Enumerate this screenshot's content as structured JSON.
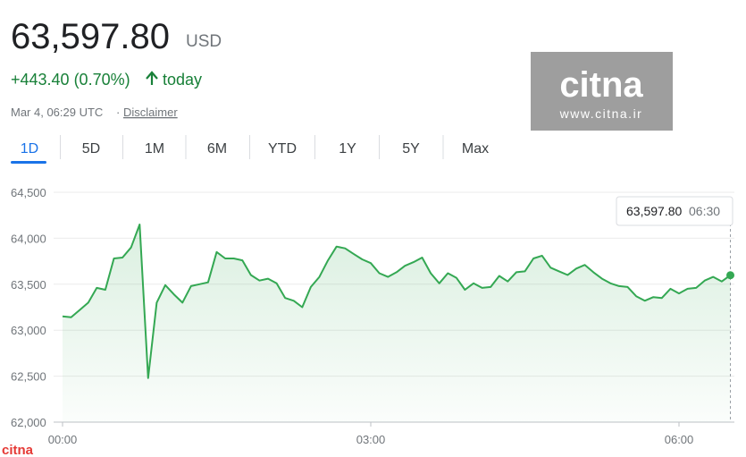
{
  "header": {
    "price": "63,597.80",
    "currency": "USD",
    "change": "+443.40 (0.70%)",
    "period": "today",
    "timestamp": "Mar 4, 06:29 UTC",
    "separator": "·",
    "disclaimer": "Disclaimer"
  },
  "tabs": [
    "1D",
    "5D",
    "1M",
    "6M",
    "YTD",
    "1Y",
    "5Y",
    "Max"
  ],
  "watermark": {
    "logo": "citna",
    "url": "www.citna.ir",
    "corner_logo": "citna"
  },
  "tooltip": {
    "value": "63,597.80",
    "time": "06:30"
  },
  "chart_data": {
    "type": "line",
    "color": "#34a853",
    "grid": true,
    "x": [
      0,
      5,
      10,
      15,
      20,
      25,
      30,
      35,
      40,
      45,
      50,
      55,
      60,
      65,
      70,
      75,
      80,
      85,
      90,
      95,
      100,
      105,
      110,
      115,
      120,
      125,
      130,
      135,
      140,
      145,
      150,
      155,
      160,
      165,
      170,
      175,
      180,
      185,
      190,
      195,
      200,
      205,
      210,
      215,
      220,
      225,
      230,
      235,
      240,
      245,
      250,
      255,
      260,
      265,
      270,
      275,
      280,
      285,
      290,
      295,
      300,
      305,
      310,
      315,
      320,
      325,
      330,
      335,
      340,
      345,
      350,
      355,
      360,
      365,
      370,
      375,
      380,
      385,
      390
    ],
    "values": [
      63150,
      63140,
      63220,
      63300,
      63460,
      63440,
      63780,
      63790,
      63900,
      64150,
      62480,
      63300,
      63490,
      63390,
      63300,
      63480,
      63500,
      63520,
      63850,
      63780,
      63780,
      63760,
      63600,
      63540,
      63560,
      63510,
      63350,
      63320,
      63250,
      63470,
      63580,
      63760,
      63910,
      63890,
      63830,
      63770,
      63730,
      63620,
      63580,
      63630,
      63700,
      63740,
      63790,
      63620,
      63510,
      63620,
      63570,
      63440,
      63510,
      63460,
      63470,
      63590,
      63530,
      63630,
      63640,
      63780,
      63810,
      63680,
      63640,
      63600,
      63670,
      63710,
      63630,
      63560,
      63510,
      63480,
      63470,
      63370,
      63320,
      63360,
      63350,
      63450,
      63400,
      63450,
      63460,
      63540,
      63580,
      63530,
      63597.8
    ],
    "xlim": [
      0,
      392
    ],
    "ylim": [
      62000,
      64500
    ],
    "xticks": [
      {
        "value": 0,
        "label": "00:00"
      },
      {
        "value": 180,
        "label": "03:00"
      },
      {
        "value": 360,
        "label": "06:00"
      }
    ],
    "yticks": [
      {
        "value": 62000,
        "label": "62,000"
      },
      {
        "value": 62500,
        "label": "62,500"
      },
      {
        "value": 63000,
        "label": "63,000"
      },
      {
        "value": 63500,
        "label": "63,500"
      },
      {
        "value": 64000,
        "label": "64,000"
      },
      {
        "value": 64500,
        "label": "64,500"
      }
    ]
  }
}
